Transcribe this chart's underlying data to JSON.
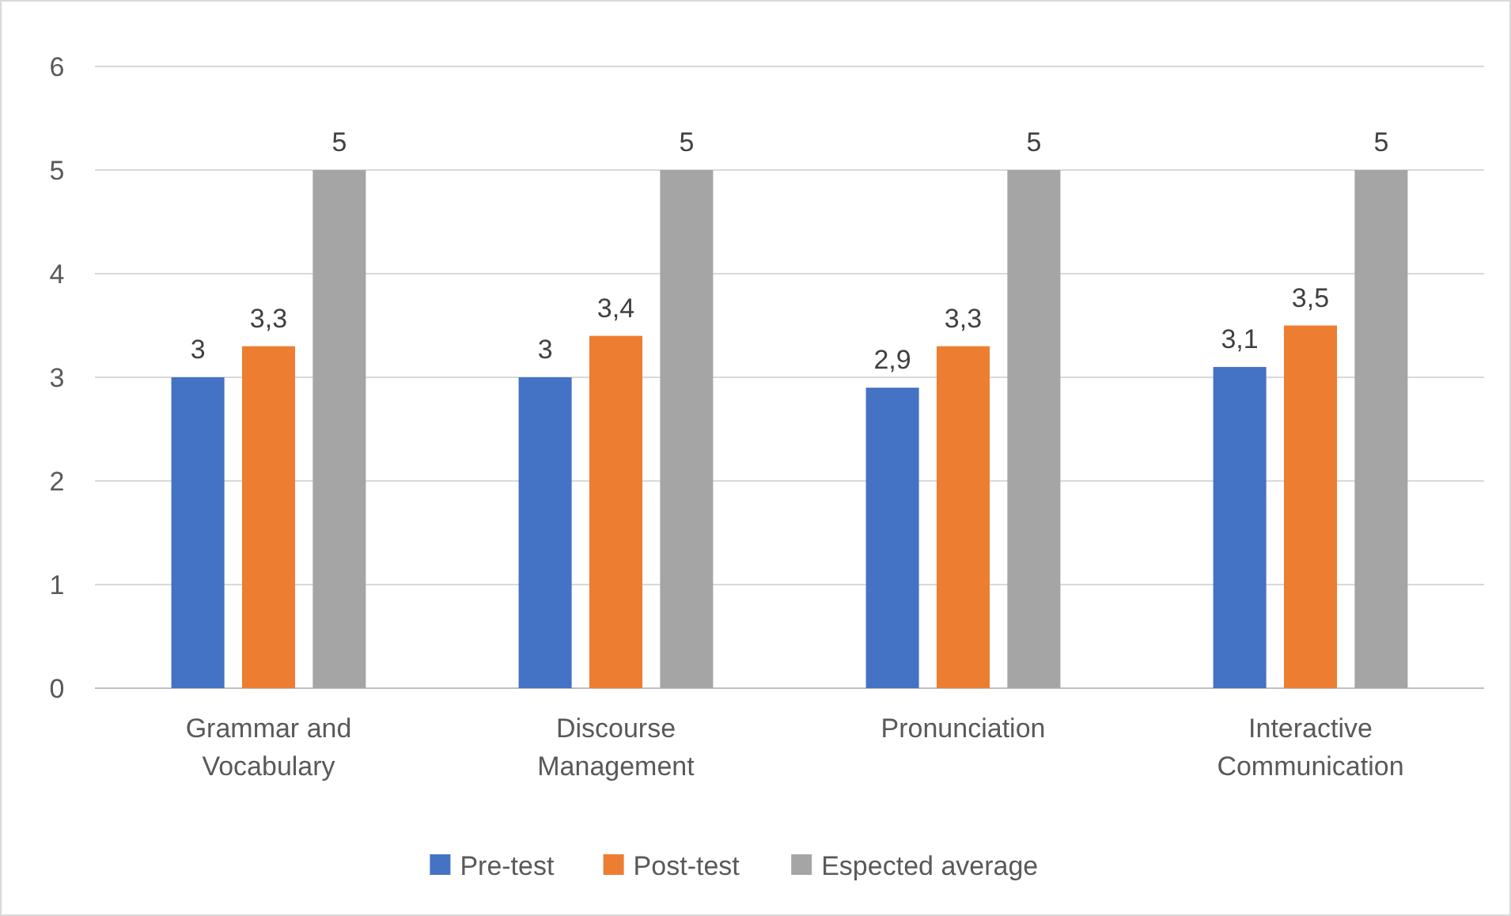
{
  "chart_data": {
    "type": "bar",
    "categories": [
      "Grammar and Vocabulary",
      "Discourse Management",
      "Pronunciation",
      "Interactive Communication"
    ],
    "series": [
      {
        "name": "Pre-test",
        "color": "#4472c4",
        "values": [
          3,
          3,
          2.9,
          3.1
        ],
        "value_labels": [
          "3",
          "3",
          "2,9",
          "3,1"
        ]
      },
      {
        "name": "Post-test",
        "color": "#ed7d31",
        "values": [
          3.3,
          3.4,
          3.3,
          3.5
        ],
        "value_labels": [
          "3,3",
          "3,4",
          "3,3",
          "3,5"
        ]
      },
      {
        "name": "Espected average",
        "color": "#a5a5a5",
        "values": [
          5,
          5,
          5,
          5
        ],
        "value_labels": [
          "5",
          "5",
          "5",
          "5"
        ]
      }
    ],
    "ylim": [
      0,
      6
    ],
    "yticks": [
      0,
      1,
      2,
      3,
      4,
      5,
      6
    ],
    "grid": "y",
    "legend": "bottom"
  }
}
